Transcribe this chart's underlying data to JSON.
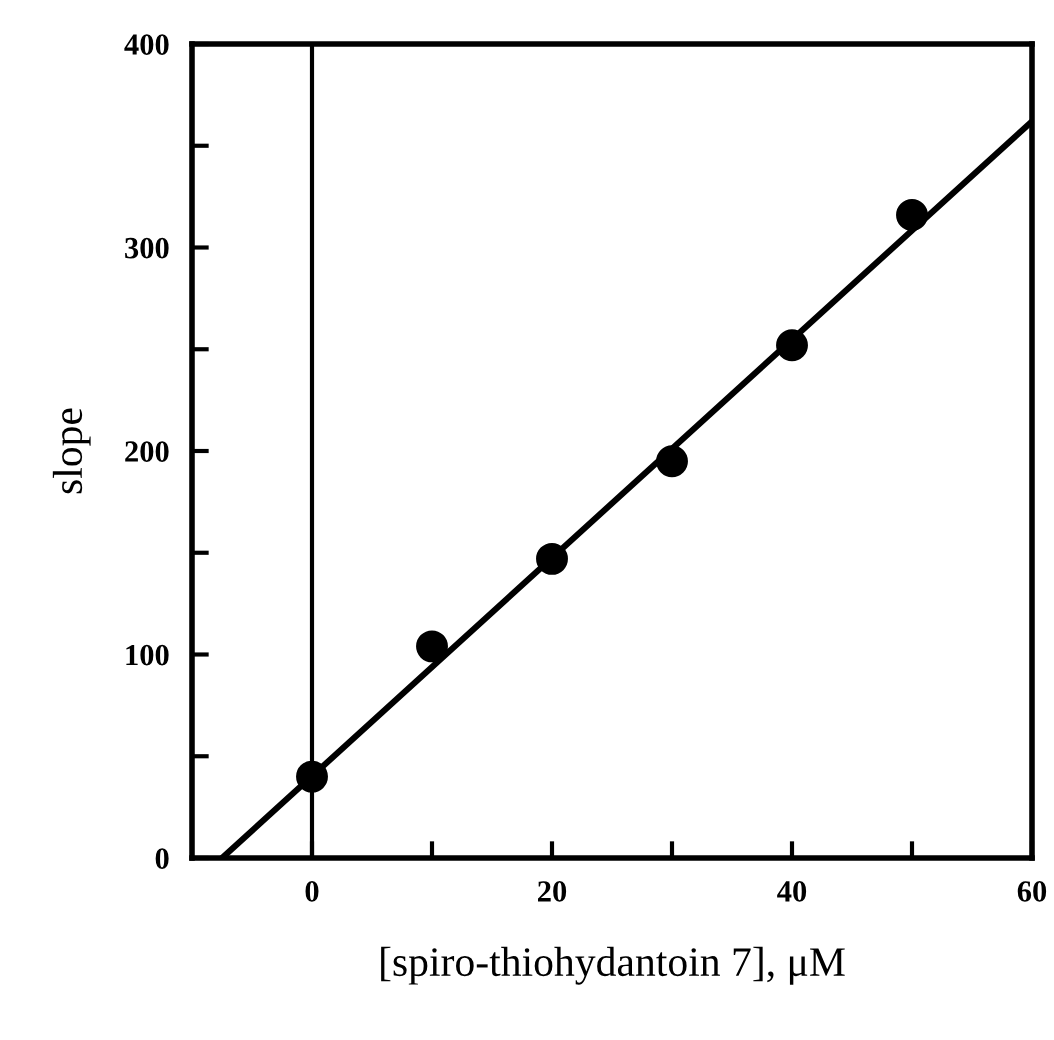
{
  "chart_data": {
    "type": "scatter",
    "xlabel": "[spiro-thiohydantoin 7], μM",
    "ylabel": "slope",
    "xlim": [
      -10,
      60
    ],
    "ylim": [
      0,
      400
    ],
    "xticks": [
      {
        "value": 0,
        "label": "0"
      },
      {
        "value": 10,
        "label": null
      },
      {
        "value": 20,
        "label": "20"
      },
      {
        "value": 30,
        "label": null
      },
      {
        "value": 40,
        "label": "40"
      },
      {
        "value": 50,
        "label": null
      },
      {
        "value": 60,
        "label": "60"
      }
    ],
    "yticks": [
      0,
      {
        "value": 50,
        "label": null
      },
      100,
      {
        "value": 150,
        "label": null
      },
      200,
      {
        "value": 250,
        "label": null
      },
      300,
      {
        "value": 350,
        "label": null
      },
      400
    ],
    "grid": false,
    "series": [
      {
        "marker": "circle",
        "color": "#000000",
        "x": [
          0,
          10,
          20,
          30,
          40,
          50
        ],
        "values": [
          40,
          104,
          147,
          195,
          252,
          316
        ]
      },
      {
        "type": "line",
        "color": "#000000",
        "x": [
          -7.5,
          60
        ],
        "values": [
          0,
          362
        ]
      }
    ],
    "ref_lines": [
      {
        "axis": "x",
        "value": 0,
        "color": "#000000"
      }
    ]
  }
}
